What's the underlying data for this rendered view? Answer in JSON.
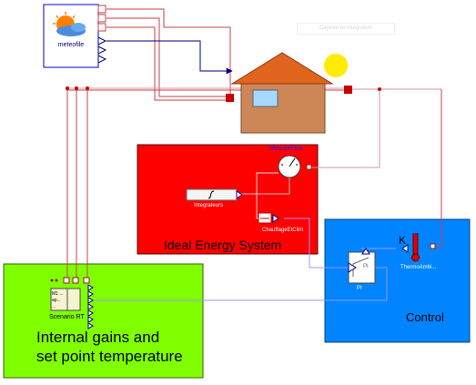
{
  "diagram": {
    "background_color": "#ffffff",
    "toolbar_hint": "Capture re-integration",
    "blocks": {
      "meteo": {
        "label": "meteofile",
        "icon": "sun-cloud-icon"
      },
      "house": {
        "icon": "house-icon",
        "wall_color": "#cd8656",
        "roof_color": "#e1641e"
      },
      "sun": {
        "icon": "sun-icon",
        "color": "#ffeb00"
      },
      "ideal_energy": {
        "title": "Ideal Energy System",
        "color": "#ff0000"
      },
      "measure": {
        "label": "MesureFlux"
      },
      "integrator": {
        "label": "Integrateurs"
      },
      "heat_flow": {
        "label": "ChauffageEtClim"
      },
      "control": {
        "title": "Control",
        "color": "#0084ff"
      },
      "pi": {
        "label": "PI",
        "symbol": "PI"
      },
      "thermo": {
        "label": "ThermoAmbi...",
        "k_label": "K"
      },
      "internal": {
        "title_line1": "Internal gains and",
        "title_line2": "set point temperature",
        "color": "#80ff00"
      },
      "scenario": {
        "label": "Scenario RT",
        "lines": [
          "M1 ...",
          "ap...",
          "..."
        ]
      }
    },
    "wire_colors": {
      "heat_port": "#c8424a",
      "signal": "#00007f",
      "weather_bus": "#b07080"
    }
  }
}
